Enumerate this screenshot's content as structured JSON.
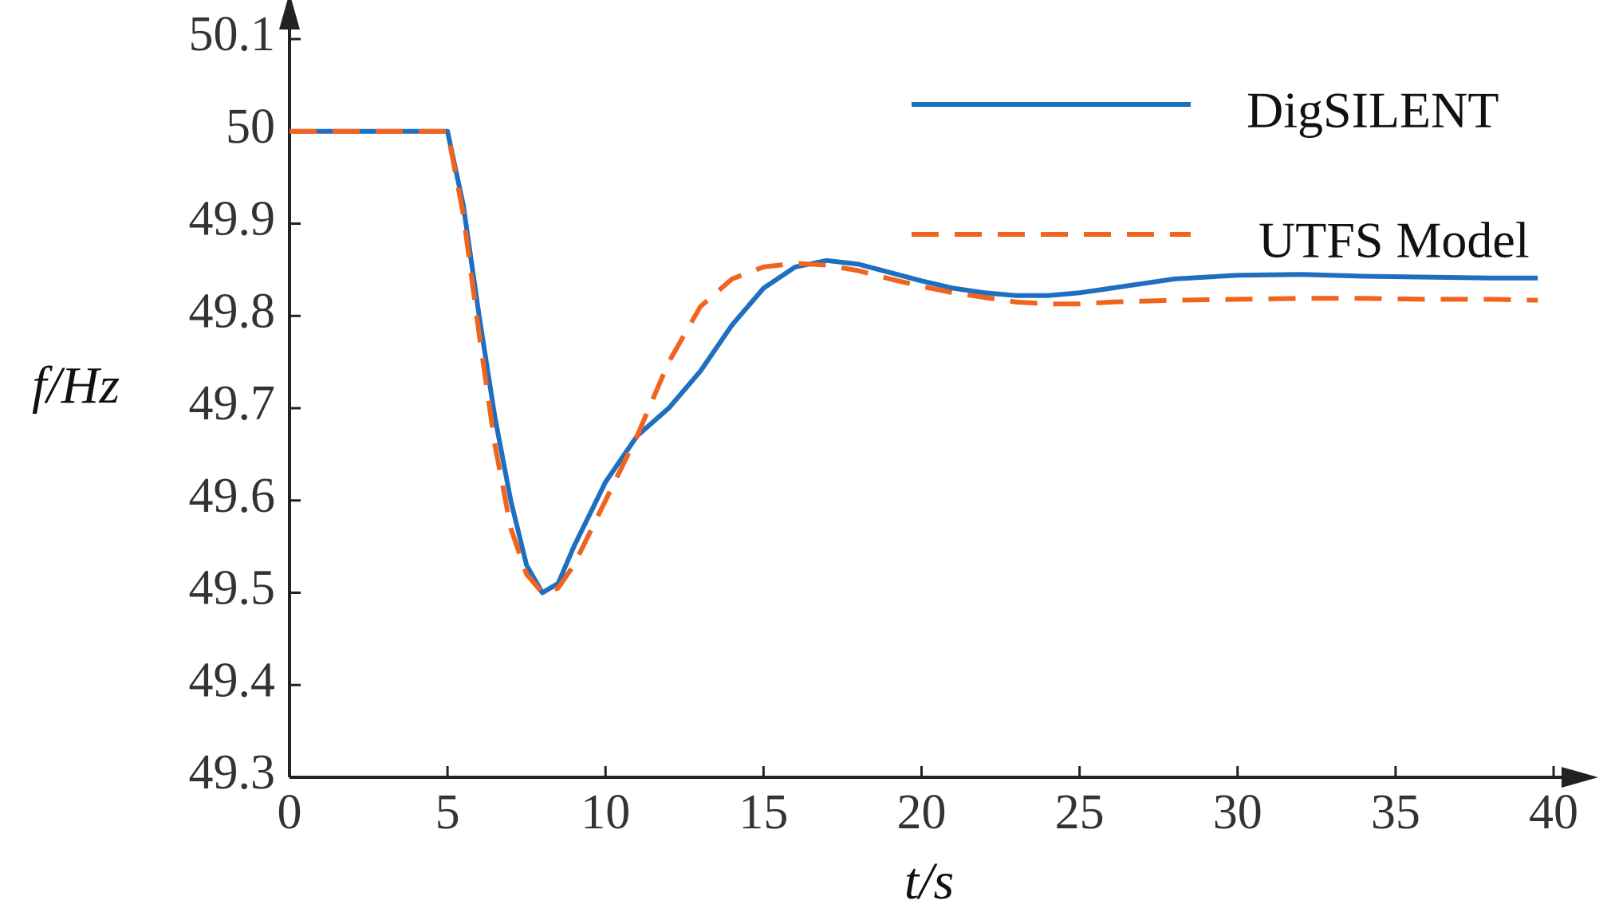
{
  "chart_data": {
    "type": "line",
    "xlabel": "t/s",
    "ylabel": "f/Hz",
    "x": [
      0,
      5,
      5.5,
      6,
      6.5,
      7,
      7.5,
      8,
      8.5,
      9,
      10,
      11,
      12,
      13,
      14,
      15,
      16,
      17,
      18,
      19,
      20,
      21,
      22,
      23,
      24,
      25,
      26,
      27,
      28,
      30,
      32,
      34,
      36,
      38,
      39.5
    ],
    "series": [
      {
        "name": "DigSILENT",
        "color": "#1f6fc0",
        "dash": false,
        "values": [
          50,
          50,
          49.92,
          49.8,
          49.69,
          49.6,
          49.53,
          49.5,
          49.51,
          49.55,
          49.62,
          49.67,
          49.7,
          49.74,
          49.79,
          49.83,
          49.853,
          49.86,
          49.856,
          49.847,
          49.838,
          49.83,
          49.825,
          49.822,
          49.822,
          49.825,
          49.83,
          49.835,
          49.84,
          49.844,
          49.845,
          49.843,
          49.842,
          49.841,
          49.841
        ]
      },
      {
        "name": "UTFS Model",
        "color": "#f0641e",
        "dash": true,
        "values": [
          50,
          50,
          49.91,
          49.78,
          49.66,
          49.57,
          49.52,
          49.5,
          49.505,
          49.53,
          49.6,
          49.67,
          49.75,
          49.81,
          49.84,
          49.853,
          49.857,
          49.855,
          49.849,
          49.84,
          49.832,
          49.825,
          49.82,
          49.815,
          49.813,
          49.813,
          49.815,
          49.816,
          49.817,
          49.818,
          49.819,
          49.819,
          49.818,
          49.818,
          49.817
        ]
      }
    ],
    "xlim": [
      0,
      40
    ],
    "xticks": [
      0,
      5,
      10,
      15,
      20,
      25,
      30,
      35,
      40
    ],
    "ylim": [
      49.3,
      50.1
    ],
    "yticks": [
      49.3,
      49.4,
      49.5,
      49.6,
      49.7,
      49.8,
      49.9,
      50,
      50.1
    ],
    "grid": false,
    "legend": "upper right"
  }
}
